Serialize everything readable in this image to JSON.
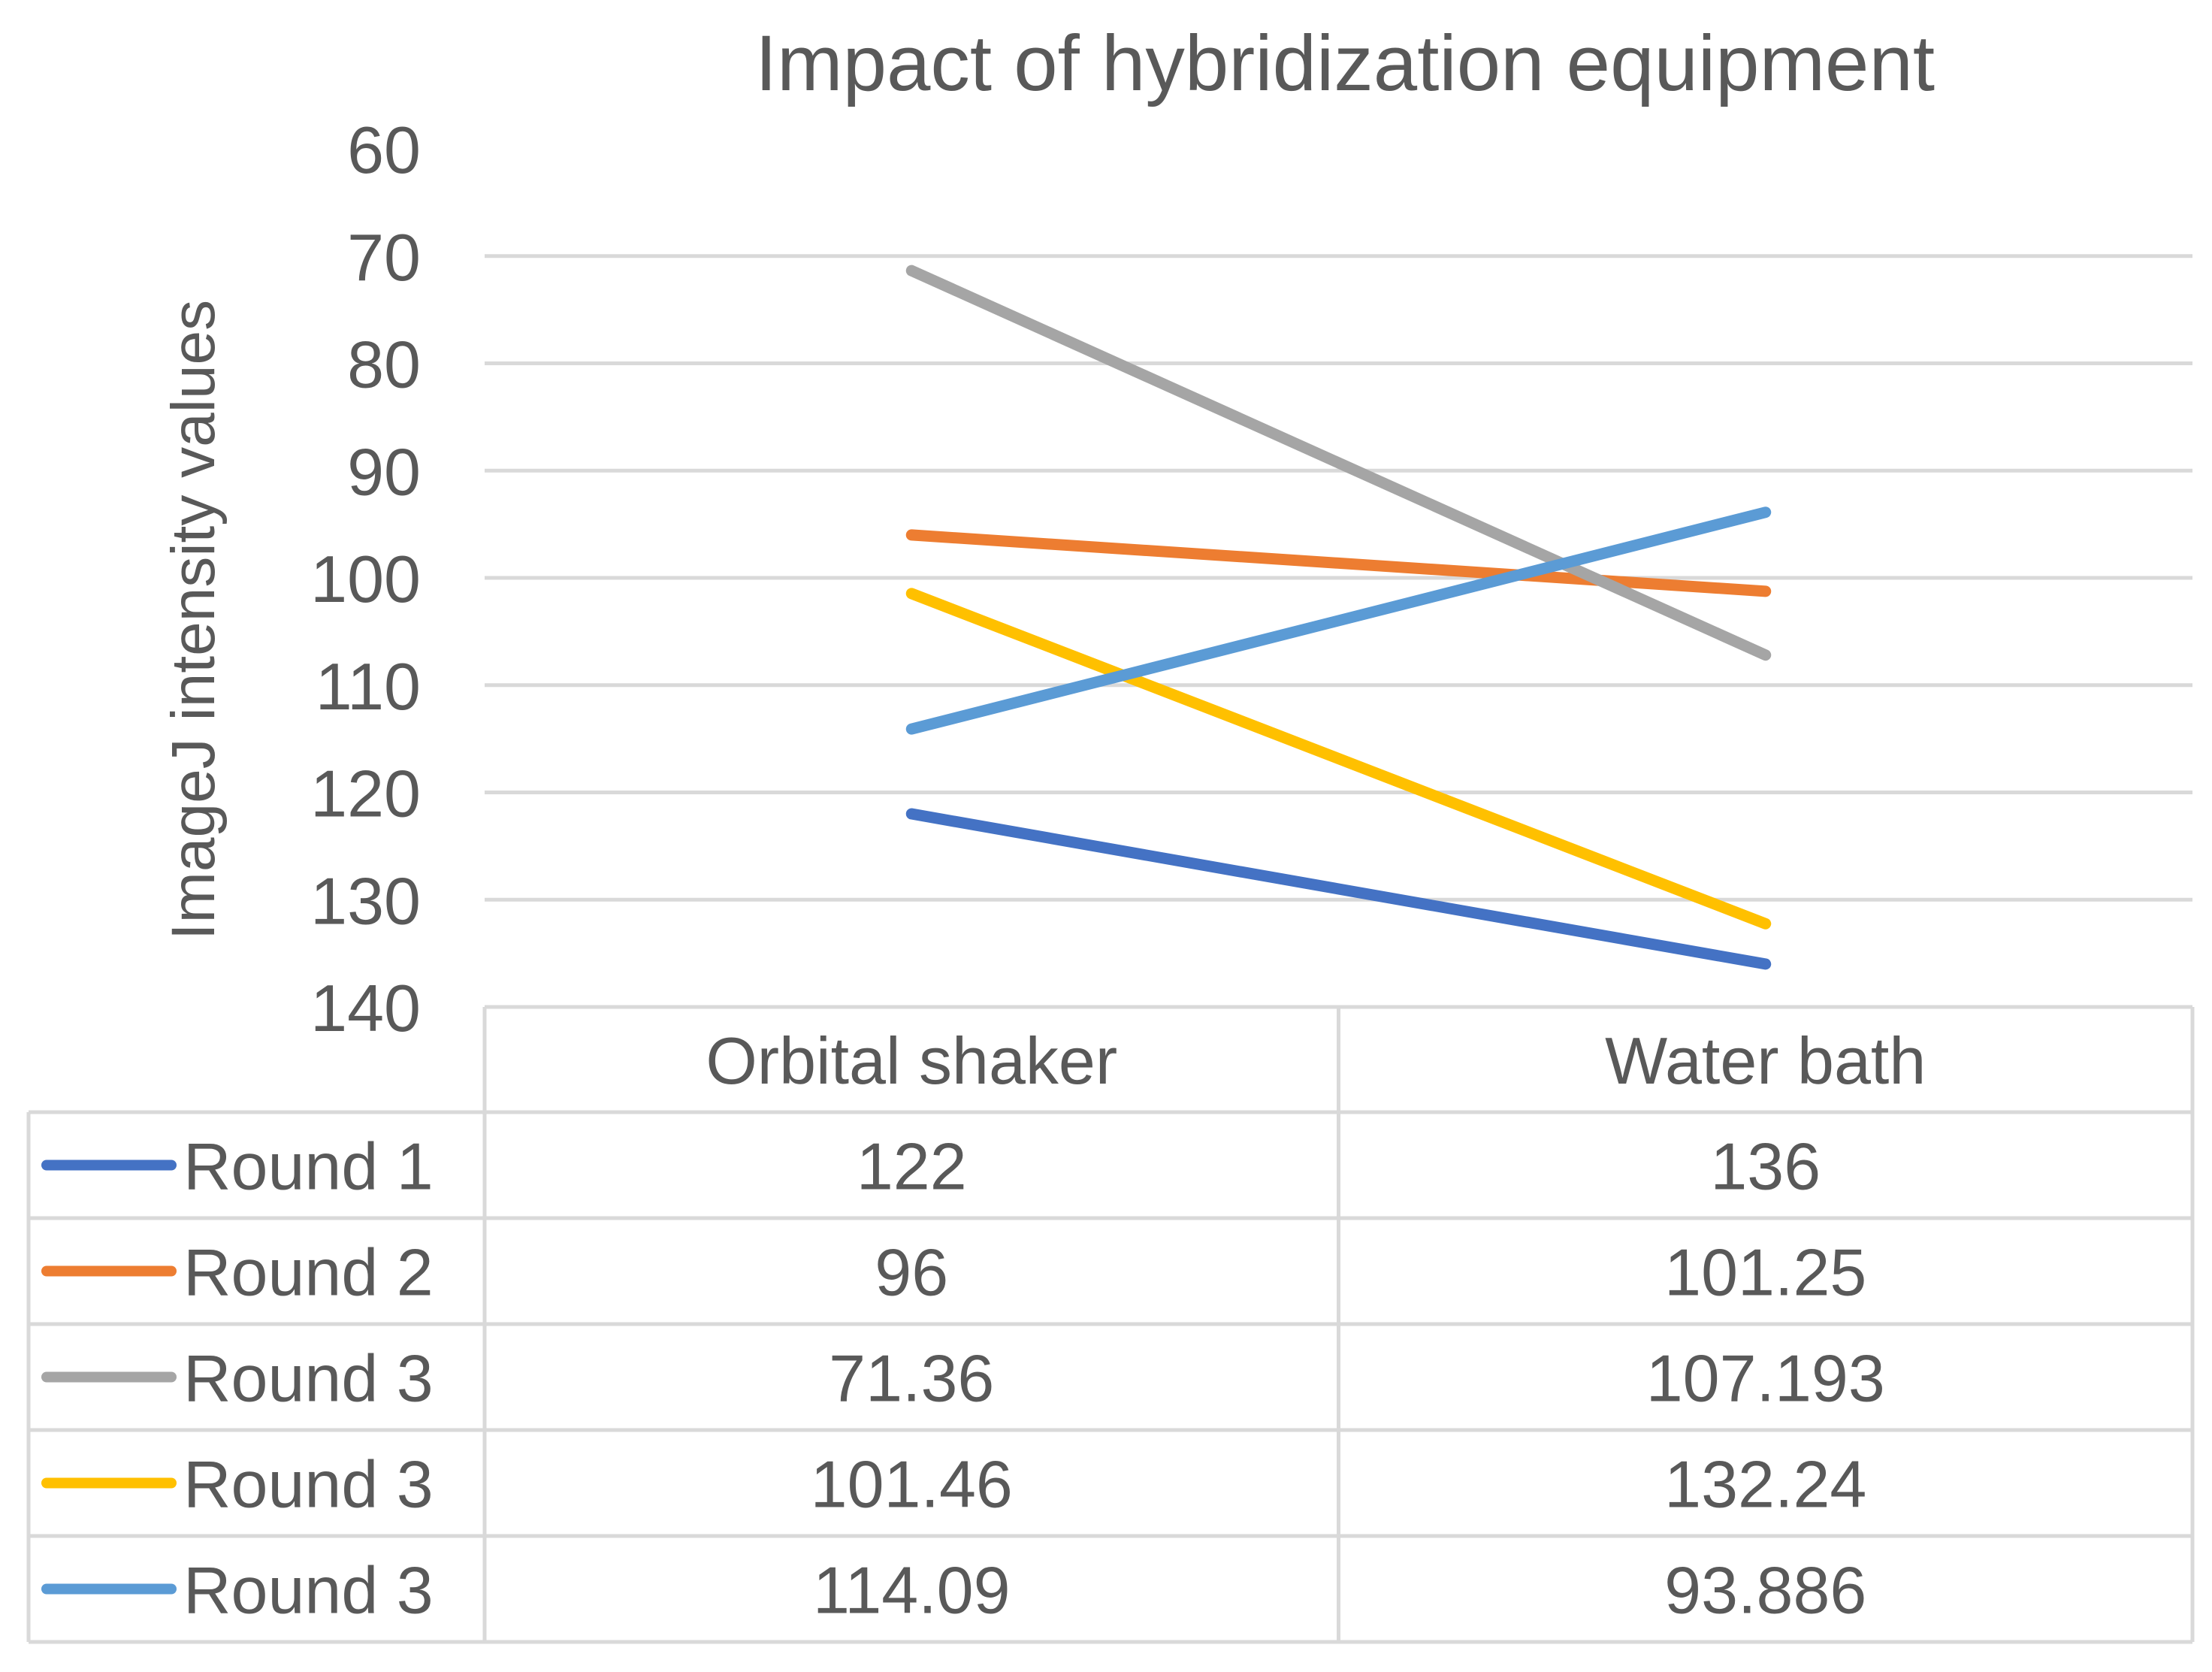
{
  "chart_data": {
    "type": "line",
    "title": "Impact of hybridization equipment",
    "xlabel": "",
    "ylabel": "ImageJ intensity values",
    "y_reversed": true,
    "ylim": [
      60,
      140
    ],
    "yticks": [
      "60",
      "70",
      "80",
      "90",
      "100",
      "110",
      "120",
      "130",
      "140"
    ],
    "categories": [
      "Orbital shaker",
      "Water bath"
    ],
    "grid": true,
    "legend": "data-table-left",
    "series": [
      {
        "name": "Round 1",
        "color": "#4472c4",
        "values": [
          122,
          136
        ],
        "labels": [
          "122",
          "136"
        ]
      },
      {
        "name": "Round 2",
        "color": "#ed7d31",
        "values": [
          96,
          101.25
        ],
        "labels": [
          "96",
          "101.25"
        ]
      },
      {
        "name": "Round 3",
        "color": "#a5a5a5",
        "values": [
          71.36,
          107.193
        ],
        "labels": [
          "71.36",
          "107.193"
        ]
      },
      {
        "name": "Round 3",
        "color": "#ffc000",
        "values": [
          101.46,
          132.24
        ],
        "labels": [
          "101.46",
          "132.24"
        ]
      },
      {
        "name": "Round 3",
        "color": "#5b9bd5",
        "values": [
          114.09,
          93.886
        ],
        "labels": [
          "114.09",
          "93.886"
        ]
      }
    ]
  }
}
